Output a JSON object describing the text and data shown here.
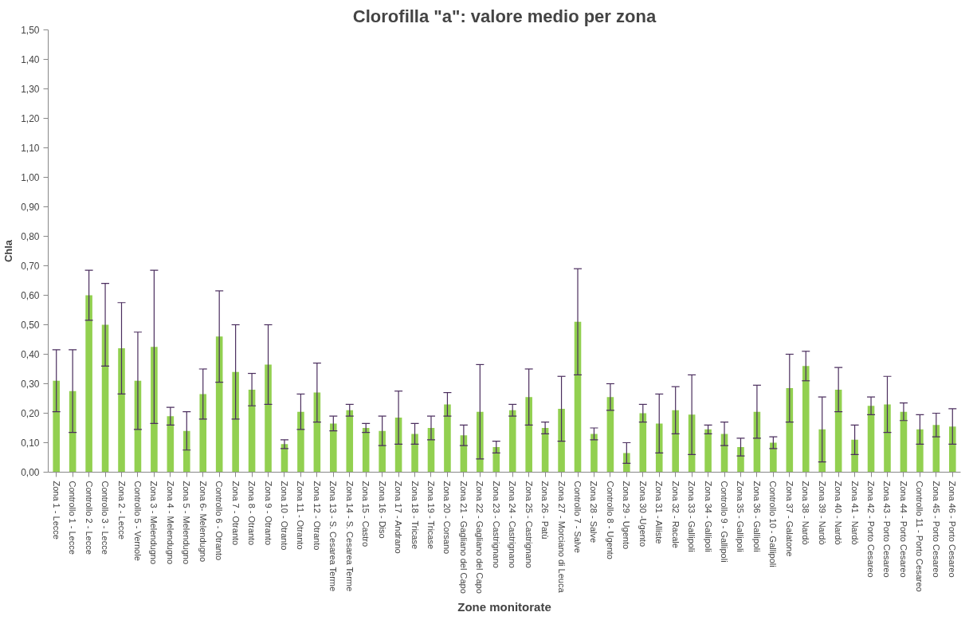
{
  "chart_data": {
    "type": "bar",
    "title": "Clorofilla \"a\": valore medio per zona",
    "xlabel": "Zone monitorate",
    "ylabel": "Chla",
    "categories": [
      "Zona 1 - Lecce",
      "Controllo 1 - Lecce",
      "Controllo 2 - Lecce",
      "Controllo 3 - Lecce",
      "Zona 2 - Lecce",
      "Controllo 5 - Vernole",
      "Zona 3 - Melendugno",
      "Zona 4 - Melendugno",
      "Zona 5 - Melendugno",
      "Zona 6- Melendugno",
      "Controllo 6 - Otranto",
      "Zona 7 - Otranto",
      "Zona 8 - Otranto",
      "Zona 9 - Otranto",
      "Zona 10 - Otranto",
      "Zona 11 - Otranto",
      "Zona 12 - Otranto",
      "Zona 13 - S. Cesarea Terme",
      "Zona 14 - S. Cesarea Terme",
      "Zona 15 - Castro",
      "Zona 16 - Diso",
      "Zona 17 - Andrano",
      "Zona 18 - Tricase",
      "Zona 19 - Tricase",
      "Zona 20 - Corsano",
      "Zona 21 - Gagliano del Capo",
      "Zona 22 - Gagliano del Capo",
      "Zona 23 - Castrignano",
      "Zona 24 - Castrignano",
      "Zona 25 - Castrignano",
      "Zona 26 - Patù",
      "Zona 27 - Morciano di Leuca",
      "Controllo 7 - Salve",
      "Zona 28 - Salve",
      "Controllo 8 - Ugento",
      "Zona 29 - Ugento",
      "Zona 30 -Ugento",
      "Zona 31 - Alliste",
      "Zona 32 - Racale",
      "Zona 33 - Gallipoli",
      "Zona 34 - Gallipoli",
      "Controllo 9 - Gallipoli",
      "Zona 35 - Gallipoli",
      "Zona 36 - Gallipoli",
      "Controllo 10 - Gallipoli",
      "Zona 37 - Galatone",
      "Zona 38 - Nardò",
      "Zona 39 - Nardò",
      "Zona 40 - Nardò",
      "Zona 41 - Nardò",
      "Zona 42 - Porto Cesareo",
      "Zona 43 - Porto Cesareo",
      "Zona 44 - Porto Cesareo",
      "Controllo 11 - Porto Cesareo",
      "Zona 45 - Porto Cesareo",
      "Zona 46 - Porto Cesareo"
    ],
    "series": [
      {
        "color": "#92d050",
        "values": [
          0.31,
          0.275,
          0.6,
          0.5,
          0.42,
          0.31,
          0.425,
          0.19,
          0.14,
          0.265,
          0.46,
          0.34,
          0.28,
          0.365,
          0.095,
          0.205,
          0.27,
          0.165,
          0.21,
          0.15,
          0.14,
          0.185,
          0.13,
          0.15,
          0.23,
          0.125,
          0.205,
          0.085,
          0.21,
          0.255,
          0.15,
          0.215,
          0.51,
          0.13,
          0.255,
          0.065,
          0.2,
          0.165,
          0.21,
          0.195,
          0.145,
          0.13,
          0.085,
          0.205,
          0.1,
          0.285,
          0.36,
          0.145,
          0.28,
          0.11,
          0.225,
          0.23,
          0.205,
          0.145,
          0.16,
          0.155
        ],
        "errors": [
          0.105,
          0.14,
          0.085,
          0.14,
          0.155,
          0.165,
          0.26,
          0.03,
          0.065,
          0.085,
          0.155,
          0.16,
          0.055,
          0.135,
          0.015,
          0.06,
          0.1,
          0.025,
          0.02,
          0.015,
          0.05,
          0.09,
          0.035,
          0.04,
          0.04,
          0.035,
          0.16,
          0.02,
          0.02,
          0.095,
          0.02,
          0.11,
          0.18,
          0.02,
          0.045,
          0.035,
          0.03,
          0.1,
          0.08,
          0.135,
          0.015,
          0.04,
          0.03,
          0.09,
          0.02,
          0.115,
          0.05,
          0.11,
          0.075,
          0.05,
          0.03,
          0.095,
          0.03,
          0.05,
          0.04,
          0.06
        ]
      }
    ],
    "ylim": [
      0,
      1.5
    ],
    "yticks": [
      {
        "value": 0,
        "label": "0,00"
      },
      {
        "value": 0.1,
        "label": "0,10"
      },
      {
        "value": 0.2,
        "label": "0,20"
      },
      {
        "value": 0.3,
        "label": "0,30"
      },
      {
        "value": 0.4,
        "label": "0,40"
      },
      {
        "value": 0.5,
        "label": "0,50"
      },
      {
        "value": 0.6,
        "label": "0,60"
      },
      {
        "value": 0.7,
        "label": "0,70"
      },
      {
        "value": 0.8,
        "label": "0,80"
      },
      {
        "value": 0.9,
        "label": "0,90"
      },
      {
        "value": 1.0,
        "label": "1,00"
      },
      {
        "value": 1.1,
        "label": "1,10"
      },
      {
        "value": 1.2,
        "label": "1,20"
      },
      {
        "value": 1.3,
        "label": "1,30"
      },
      {
        "value": 1.4,
        "label": "1,40"
      },
      {
        "value": 1.5,
        "label": "1,50"
      }
    ],
    "grid": false
  }
}
